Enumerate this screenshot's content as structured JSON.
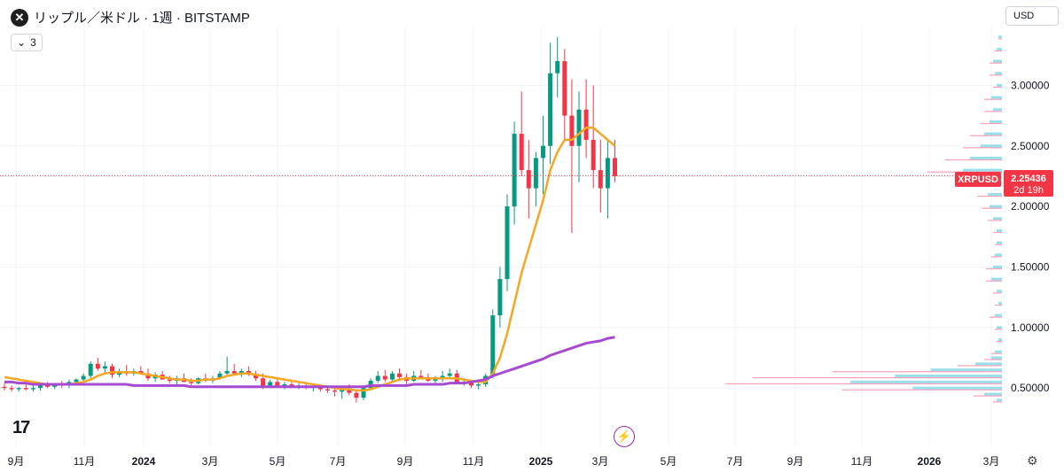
{
  "header": {
    "title": "リップル／米ドル · 1週 · BITSTAMP",
    "logo_icon": "xrp-logo-icon",
    "indicator_toggle": "3",
    "currency": "USD"
  },
  "price_tag": {
    "symbol": "XRPUSD",
    "price": "2.25436",
    "countdown": "2d 19h",
    "color": "#f23645"
  },
  "colors": {
    "up": "#089981",
    "down": "#f23645",
    "ma_fast": "#f5a623",
    "ma_slow": "#a64bd1",
    "vp_up": "#7fd8e6",
    "vp_down": "#f48aa8"
  },
  "chart_data": {
    "type": "candlestick",
    "symbol": "XRPUSD",
    "timeframe": "1週",
    "x_ticks": [
      "9月",
      "11月",
      "2024",
      "3月",
      "5月",
      "7月",
      "9月",
      "11月",
      "2025",
      "3月",
      "5月",
      "7月",
      "9月",
      "11月",
      "2026",
      "3月"
    ],
    "y_ticks": [
      "3.00000",
      "2.50000",
      "2.00000",
      "1.50000",
      "1.00000",
      "0.50000"
    ],
    "ylim": [
      0.35,
      3.45
    ],
    "candles": [
      [
        0.51,
        0.54,
        0.48,
        0.5
      ],
      [
        0.5,
        0.52,
        0.47,
        0.49
      ],
      [
        0.49,
        0.51,
        0.47,
        0.5
      ],
      [
        0.5,
        0.53,
        0.48,
        0.49
      ],
      [
        0.49,
        0.52,
        0.47,
        0.5
      ],
      [
        0.5,
        0.53,
        0.48,
        0.52
      ],
      [
        0.52,
        0.55,
        0.5,
        0.51
      ],
      [
        0.51,
        0.54,
        0.49,
        0.53
      ],
      [
        0.53,
        0.56,
        0.5,
        0.52
      ],
      [
        0.52,
        0.57,
        0.5,
        0.55
      ],
      [
        0.55,
        0.58,
        0.52,
        0.57
      ],
      [
        0.57,
        0.62,
        0.55,
        0.6
      ],
      [
        0.6,
        0.72,
        0.58,
        0.7
      ],
      [
        0.7,
        0.75,
        0.64,
        0.66
      ],
      [
        0.66,
        0.72,
        0.62,
        0.68
      ],
      [
        0.68,
        0.7,
        0.58,
        0.61
      ],
      [
        0.61,
        0.66,
        0.59,
        0.64
      ],
      [
        0.64,
        0.69,
        0.6,
        0.62
      ],
      [
        0.62,
        0.66,
        0.6,
        0.64
      ],
      [
        0.64,
        0.68,
        0.61,
        0.62
      ],
      [
        0.62,
        0.66,
        0.56,
        0.58
      ],
      [
        0.58,
        0.63,
        0.55,
        0.61
      ],
      [
        0.61,
        0.64,
        0.57,
        0.57
      ],
      [
        0.57,
        0.6,
        0.54,
        0.56
      ],
      [
        0.56,
        0.6,
        0.53,
        0.58
      ],
      [
        0.58,
        0.62,
        0.55,
        0.55
      ],
      [
        0.55,
        0.58,
        0.52,
        0.54
      ],
      [
        0.54,
        0.59,
        0.53,
        0.58
      ],
      [
        0.58,
        0.62,
        0.55,
        0.56
      ],
      [
        0.56,
        0.6,
        0.54,
        0.58
      ],
      [
        0.58,
        0.64,
        0.57,
        0.62
      ],
      [
        0.62,
        0.76,
        0.6,
        0.64
      ],
      [
        0.64,
        0.7,
        0.61,
        0.62
      ],
      [
        0.62,
        0.66,
        0.59,
        0.64
      ],
      [
        0.64,
        0.68,
        0.6,
        0.61
      ],
      [
        0.61,
        0.64,
        0.56,
        0.58
      ],
      [
        0.58,
        0.62,
        0.49,
        0.52
      ],
      [
        0.52,
        0.57,
        0.5,
        0.55
      ],
      [
        0.55,
        0.58,
        0.51,
        0.52
      ],
      [
        0.52,
        0.55,
        0.49,
        0.53
      ],
      [
        0.53,
        0.56,
        0.5,
        0.51
      ],
      [
        0.51,
        0.54,
        0.49,
        0.52
      ],
      [
        0.52,
        0.55,
        0.49,
        0.5
      ],
      [
        0.5,
        0.53,
        0.47,
        0.51
      ],
      [
        0.51,
        0.53,
        0.47,
        0.49
      ],
      [
        0.49,
        0.52,
        0.46,
        0.48
      ],
      [
        0.48,
        0.5,
        0.43,
        0.47
      ],
      [
        0.47,
        0.51,
        0.41,
        0.49
      ],
      [
        0.49,
        0.53,
        0.44,
        0.46
      ],
      [
        0.46,
        0.48,
        0.38,
        0.42
      ],
      [
        0.42,
        0.52,
        0.4,
        0.5
      ],
      [
        0.5,
        0.58,
        0.48,
        0.56
      ],
      [
        0.56,
        0.64,
        0.54,
        0.6
      ],
      [
        0.6,
        0.65,
        0.55,
        0.57
      ],
      [
        0.57,
        0.64,
        0.55,
        0.62
      ],
      [
        0.62,
        0.66,
        0.57,
        0.59
      ],
      [
        0.59,
        0.62,
        0.53,
        0.56
      ],
      [
        0.56,
        0.64,
        0.55,
        0.6
      ],
      [
        0.6,
        0.65,
        0.57,
        0.58
      ],
      [
        0.58,
        0.62,
        0.55,
        0.56
      ],
      [
        0.56,
        0.6,
        0.53,
        0.58
      ],
      [
        0.58,
        0.64,
        0.55,
        0.6
      ],
      [
        0.6,
        0.66,
        0.58,
        0.62
      ],
      [
        0.62,
        0.65,
        0.55,
        0.54
      ],
      [
        0.54,
        0.58,
        0.52,
        0.55
      ],
      [
        0.55,
        0.57,
        0.5,
        0.52
      ],
      [
        0.52,
        0.56,
        0.49,
        0.53
      ],
      [
        0.53,
        0.62,
        0.51,
        0.6
      ],
      [
        0.6,
        1.15,
        0.58,
        1.1
      ],
      [
        1.1,
        1.5,
        1.0,
        1.4
      ],
      [
        1.4,
        2.1,
        1.3,
        2.0
      ],
      [
        2.0,
        2.7,
        1.85,
        2.6
      ],
      [
        2.6,
        2.95,
        2.25,
        2.3
      ],
      [
        2.3,
        2.55,
        1.9,
        2.15
      ],
      [
        2.15,
        2.45,
        2.0,
        2.4
      ],
      [
        2.4,
        2.75,
        2.1,
        2.5
      ],
      [
        2.5,
        3.35,
        2.35,
        3.1
      ],
      [
        3.1,
        3.4,
        2.9,
        3.2
      ],
      [
        3.2,
        3.3,
        2.55,
        2.75
      ],
      [
        2.75,
        3.05,
        1.78,
        2.5
      ],
      [
        2.5,
        2.95,
        2.2,
        2.8
      ],
      [
        2.8,
        3.05,
        2.4,
        2.55
      ],
      [
        2.55,
        3.0,
        2.15,
        2.3
      ],
      [
        2.3,
        2.55,
        1.95,
        2.15
      ],
      [
        2.15,
        2.55,
        1.9,
        2.4
      ],
      [
        2.4,
        2.55,
        2.2,
        2.25
      ]
    ],
    "series": [
      {
        "name": "ma_fast",
        "values": [
          0.59,
          0.58,
          0.57,
          0.56,
          0.55,
          0.54,
          0.53,
          0.53,
          0.53,
          0.53,
          0.54,
          0.55,
          0.57,
          0.6,
          0.62,
          0.63,
          0.63,
          0.63,
          0.63,
          0.62,
          0.61,
          0.6,
          0.59,
          0.58,
          0.57,
          0.57,
          0.56,
          0.56,
          0.57,
          0.57,
          0.58,
          0.6,
          0.61,
          0.62,
          0.62,
          0.61,
          0.6,
          0.59,
          0.58,
          0.57,
          0.56,
          0.55,
          0.54,
          0.53,
          0.52,
          0.51,
          0.5,
          0.49,
          0.49,
          0.48,
          0.48,
          0.49,
          0.51,
          0.53,
          0.55,
          0.57,
          0.58,
          0.58,
          0.58,
          0.58,
          0.58,
          0.58,
          0.58,
          0.58,
          0.57,
          0.56,
          0.55,
          0.55,
          0.62,
          0.75,
          0.95,
          1.2,
          1.45,
          1.65,
          1.85,
          2.05,
          2.3,
          2.45,
          2.55,
          2.55,
          2.6,
          2.65,
          2.65,
          2.6,
          2.55,
          2.5
        ]
      },
      {
        "name": "ma_slow",
        "values": [
          0.55,
          0.55,
          0.54,
          0.54,
          0.53,
          0.53,
          0.53,
          0.53,
          0.53,
          0.53,
          0.53,
          0.53,
          0.53,
          0.53,
          0.53,
          0.53,
          0.53,
          0.53,
          0.52,
          0.52,
          0.52,
          0.52,
          0.52,
          0.52,
          0.52,
          0.52,
          0.51,
          0.51,
          0.51,
          0.51,
          0.51,
          0.51,
          0.51,
          0.51,
          0.51,
          0.51,
          0.51,
          0.51,
          0.51,
          0.51,
          0.51,
          0.51,
          0.51,
          0.51,
          0.51,
          0.51,
          0.51,
          0.51,
          0.51,
          0.51,
          0.51,
          0.52,
          0.52,
          0.52,
          0.52,
          0.52,
          0.52,
          0.53,
          0.53,
          0.53,
          0.53,
          0.53,
          0.54,
          0.54,
          0.54,
          0.55,
          0.56,
          0.57,
          0.6,
          0.62,
          0.64,
          0.66,
          0.68,
          0.7,
          0.72,
          0.74,
          0.77,
          0.79,
          0.81,
          0.83,
          0.85,
          0.87,
          0.88,
          0.89,
          0.91,
          0.92
        ]
      }
    ],
    "volume_profile": [
      [
        3.4,
        0.02,
        0.0
      ],
      [
        3.3,
        0.03,
        0.01
      ],
      [
        3.2,
        0.05,
        0.02
      ],
      [
        3.1,
        0.04,
        0.03
      ],
      [
        3.0,
        0.03,
        0.02
      ],
      [
        2.9,
        0.06,
        0.04
      ],
      [
        2.8,
        0.05,
        0.05
      ],
      [
        2.7,
        0.07,
        0.05
      ],
      [
        2.6,
        0.1,
        0.08
      ],
      [
        2.5,
        0.12,
        0.1
      ],
      [
        2.4,
        0.18,
        0.14
      ],
      [
        2.3,
        0.22,
        0.2
      ],
      [
        2.2,
        0.14,
        0.12
      ],
      [
        2.1,
        0.08,
        0.06
      ],
      [
        2.0,
        0.07,
        0.04
      ],
      [
        1.9,
        0.05,
        0.03
      ],
      [
        1.8,
        0.03,
        0.02
      ],
      [
        1.7,
        0.03,
        0.01
      ],
      [
        1.6,
        0.04,
        0.02
      ],
      [
        1.5,
        0.05,
        0.04
      ],
      [
        1.4,
        0.06,
        0.03
      ],
      [
        1.3,
        0.03,
        0.02
      ],
      [
        1.2,
        0.02,
        0.02
      ],
      [
        1.1,
        0.04,
        0.03
      ],
      [
        1.0,
        0.03,
        0.01
      ],
      [
        0.9,
        0.02,
        0.01
      ],
      [
        0.8,
        0.04,
        0.02
      ],
      [
        0.75,
        0.06,
        0.04
      ],
      [
        0.7,
        0.15,
        0.1
      ],
      [
        0.65,
        0.4,
        0.55
      ],
      [
        0.6,
        0.6,
        0.8
      ],
      [
        0.55,
        0.85,
        0.7
      ],
      [
        0.5,
        0.5,
        0.4
      ],
      [
        0.45,
        0.1,
        0.06
      ],
      [
        0.4,
        0.03,
        0.02
      ]
    ]
  }
}
